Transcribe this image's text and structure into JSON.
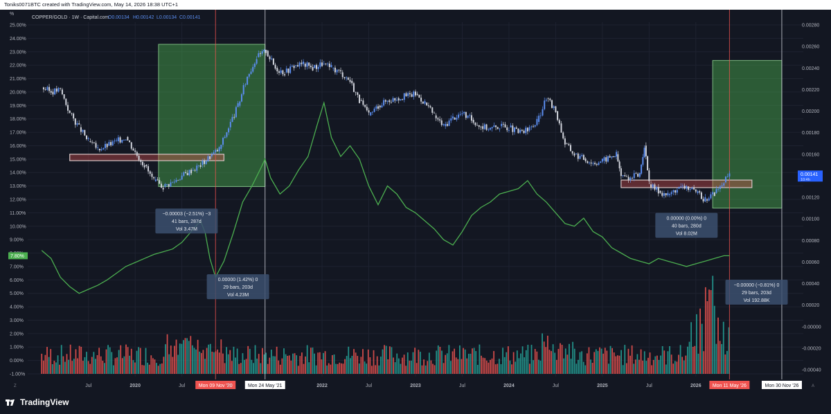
{
  "header": {
    "caption": "Toniks0071BTC created with TradingView.com, May 14, 2026 18:38 UTC+1"
  },
  "legend": {
    "symbol": "COPPER/GOLD · 1W · Capital.com",
    "o": "O0.00134",
    "h": "H0.00142",
    "l": "L0.00134",
    "c": "C0.00141"
  },
  "footer": {
    "brand": "TradingView"
  },
  "chart_data": {
    "type": "line",
    "left_axis": {
      "unit": "%",
      "labels": [
        "25.00%",
        "24.00%",
        "23.00%",
        "22.00%",
        "21.00%",
        "20.00%",
        "19.00%",
        "18.00%",
        "17.00%",
        "16.00%",
        "15.00%",
        "14.00%",
        "13.00%",
        "12.00%",
        "11.00%",
        "10.00%",
        "9.00%",
        "8.00%",
        "7.00%",
        "6.00%",
        "5.00%",
        "4.00%",
        "3.00%",
        "2.00%",
        "1.00%",
        "0.00%",
        "-1.00%"
      ],
      "current_label": "7.80%",
      "current_color": "#4caf50"
    },
    "right_axis": {
      "labels": [
        "0.00280",
        "0.00260",
        "0.00240",
        "0.00220",
        "0.00200",
        "0.00180",
        "0.00160",
        "0.00140",
        "0.00120",
        "0.00100",
        "0.00080",
        "0.00060",
        "0.00040",
        "0.00020",
        "-0.00000",
        "-0.00020",
        "-0.00040"
      ],
      "current_label": "0.00141",
      "current_sub": "10:4h",
      "current_color": "#2962ff"
    },
    "x_axis": {
      "ticks": [
        {
          "label": "Jul",
          "t": 2019.5
        },
        {
          "label": "2020",
          "t": 2020.0
        },
        {
          "label": "Jul",
          "t": 2020.5
        },
        {
          "label": "2022",
          "t": 2022.0
        },
        {
          "label": "Jul",
          "t": 2022.5
        },
        {
          "label": "2023",
          "t": 2023.0
        },
        {
          "label": "Jul",
          "t": 2023.5
        },
        {
          "label": "2024",
          "t": 2024.0
        },
        {
          "label": "Jul",
          "t": 2024.5
        },
        {
          "label": "2025",
          "t": 2025.0
        },
        {
          "label": "Jul",
          "t": 2025.5
        },
        {
          "label": "2026",
          "t": 2026.0
        }
      ],
      "markers": [
        {
          "label": "Mon 09 Nov '20",
          "t": 2020.86,
          "style": "red"
        },
        {
          "label": "'20",
          "t": 2021.05,
          "style": "plain"
        },
        {
          "label": "Mon 24 May '21",
          "t": 2021.39,
          "style": "white"
        },
        {
          "label": "Mon 11 May '26",
          "t": 2026.36,
          "style": "red"
        },
        {
          "label": "Mon 30 Nov '26",
          "t": 2026.92,
          "style": "white"
        }
      ]
    },
    "series": [
      {
        "name": "COPPER/GOLD",
        "kind": "candles",
        "color_up": "#5b8def",
        "color_down": "#d1d4dc",
        "points": [
          [
            2019.0,
            0.00222
          ],
          [
            2019.1,
            0.00218
          ],
          [
            2019.2,
            0.0022
          ],
          [
            2019.3,
            0.00198
          ],
          [
            2019.4,
            0.00185
          ],
          [
            2019.5,
            0.00172
          ],
          [
            2019.6,
            0.00165
          ],
          [
            2019.7,
            0.00168
          ],
          [
            2019.8,
            0.00172
          ],
          [
            2019.9,
            0.00176
          ],
          [
            2020.0,
            0.00162
          ],
          [
            2020.1,
            0.0015
          ],
          [
            2020.2,
            0.00135
          ],
          [
            2020.3,
            0.0013
          ],
          [
            2020.4,
            0.00134
          ],
          [
            2020.5,
            0.0014
          ],
          [
            2020.6,
            0.00145
          ],
          [
            2020.7,
            0.0015
          ],
          [
            2020.8,
            0.00158
          ],
          [
            2020.9,
            0.00165
          ],
          [
            2021.0,
            0.00185
          ],
          [
            2021.1,
            0.00205
          ],
          [
            2021.2,
            0.00232
          ],
          [
            2021.3,
            0.0025
          ],
          [
            2021.4,
            0.00256
          ],
          [
            2021.5,
            0.0024
          ],
          [
            2021.6,
            0.00236
          ],
          [
            2021.7,
            0.00242
          ],
          [
            2021.8,
            0.00244
          ],
          [
            2021.9,
            0.0024
          ],
          [
            2022.0,
            0.00244
          ],
          [
            2022.1,
            0.0024
          ],
          [
            2022.2,
            0.00236
          ],
          [
            2022.3,
            0.00228
          ],
          [
            2022.4,
            0.0021
          ],
          [
            2022.5,
            0.00196
          ],
          [
            2022.6,
            0.00205
          ],
          [
            2022.7,
            0.0021
          ],
          [
            2022.8,
            0.00212
          ],
          [
            2022.9,
            0.00214
          ],
          [
            2023.0,
            0.00216
          ],
          [
            2023.1,
            0.00208
          ],
          [
            2023.2,
            0.00196
          ],
          [
            2023.3,
            0.00186
          ],
          [
            2023.4,
            0.00194
          ],
          [
            2023.5,
            0.00198
          ],
          [
            2023.6,
            0.00192
          ],
          [
            2023.7,
            0.00186
          ],
          [
            2023.8,
            0.00184
          ],
          [
            2023.9,
            0.00186
          ],
          [
            2024.0,
            0.00185
          ],
          [
            2024.1,
            0.0018
          ],
          [
            2024.2,
            0.00182
          ],
          [
            2024.3,
            0.0019
          ],
          [
            2024.4,
            0.00212
          ],
          [
            2024.5,
            0.002
          ],
          [
            2024.6,
            0.0017
          ],
          [
            2024.7,
            0.0016
          ],
          [
            2024.8,
            0.00156
          ],
          [
            2024.9,
            0.00152
          ],
          [
            2025.0,
            0.00154
          ],
          [
            2025.1,
            0.00158
          ],
          [
            2025.15,
            0.0016
          ],
          [
            2025.2,
            0.0014
          ],
          [
            2025.3,
            0.00138
          ],
          [
            2025.4,
            0.00142
          ],
          [
            2025.45,
            0.00168
          ],
          [
            2025.5,
            0.00132
          ],
          [
            2025.6,
            0.00126
          ],
          [
            2025.7,
            0.00122
          ],
          [
            2025.8,
            0.00128
          ],
          [
            2025.9,
            0.0013
          ],
          [
            2026.0,
            0.00124
          ],
          [
            2026.1,
            0.00118
          ],
          [
            2026.2,
            0.00124
          ],
          [
            2026.3,
            0.00134
          ],
          [
            2026.36,
            0.00141
          ]
        ]
      },
      {
        "name": "",
        "kind": "line",
        "color": "#4caf50",
        "axis": "left",
        "points": [
          [
            2019.0,
            8.2
          ],
          [
            2019.1,
            7.6
          ],
          [
            2019.2,
            6.2
          ],
          [
            2019.3,
            5.5
          ],
          [
            2019.4,
            5.0
          ],
          [
            2019.5,
            5.3
          ],
          [
            2019.6,
            5.6
          ],
          [
            2019.7,
            6.0
          ],
          [
            2019.8,
            6.5
          ],
          [
            2019.9,
            7.0
          ],
          [
            2020.0,
            7.3
          ],
          [
            2020.1,
            7.6
          ],
          [
            2020.2,
            7.9
          ],
          [
            2020.3,
            8.1
          ],
          [
            2020.4,
            8.3
          ],
          [
            2020.5,
            8.8
          ],
          [
            2020.6,
            9.6
          ],
          [
            2020.7,
            10.4
          ],
          [
            2020.75,
            9.5
          ],
          [
            2020.8,
            7.6
          ],
          [
            2020.86,
            6.2
          ],
          [
            2020.95,
            7.4
          ],
          [
            2021.05,
            9.5
          ],
          [
            2021.15,
            11.8
          ],
          [
            2021.25,
            13.0
          ],
          [
            2021.35,
            14.4
          ],
          [
            2021.39,
            15.0
          ],
          [
            2021.45,
            13.6
          ],
          [
            2021.55,
            12.4
          ],
          [
            2021.65,
            13.0
          ],
          [
            2021.75,
            14.2
          ],
          [
            2021.85,
            15.2
          ],
          [
            2021.95,
            17.6
          ],
          [
            2022.02,
            19.2
          ],
          [
            2022.1,
            16.6
          ],
          [
            2022.2,
            15.2
          ],
          [
            2022.3,
            16.0
          ],
          [
            2022.4,
            15.0
          ],
          [
            2022.5,
            13.0
          ],
          [
            2022.6,
            11.6
          ],
          [
            2022.7,
            13.0
          ],
          [
            2022.8,
            12.4
          ],
          [
            2022.9,
            11.4
          ],
          [
            2023.0,
            11.0
          ],
          [
            2023.1,
            10.4
          ],
          [
            2023.2,
            9.8
          ],
          [
            2023.3,
            9.0
          ],
          [
            2023.4,
            8.6
          ],
          [
            2023.5,
            9.6
          ],
          [
            2023.6,
            10.8
          ],
          [
            2023.7,
            11.4
          ],
          [
            2023.8,
            11.8
          ],
          [
            2023.9,
            12.4
          ],
          [
            2024.0,
            12.6
          ],
          [
            2024.1,
            12.8
          ],
          [
            2024.2,
            13.4
          ],
          [
            2024.3,
            12.4
          ],
          [
            2024.4,
            11.8
          ],
          [
            2024.5,
            11.0
          ],
          [
            2024.6,
            10.2
          ],
          [
            2024.7,
            10.0
          ],
          [
            2024.8,
            10.6
          ],
          [
            2024.9,
            9.6
          ],
          [
            2025.0,
            9.2
          ],
          [
            2025.1,
            8.4
          ],
          [
            2025.2,
            8.0
          ],
          [
            2025.3,
            7.6
          ],
          [
            2025.4,
            7.4
          ],
          [
            2025.5,
            7.2
          ],
          [
            2025.6,
            7.6
          ],
          [
            2025.7,
            7.4
          ],
          [
            2025.8,
            7.2
          ],
          [
            2025.9,
            7.0
          ],
          [
            2026.0,
            7.2
          ],
          [
            2026.1,
            7.4
          ],
          [
            2026.2,
            7.6
          ],
          [
            2026.3,
            7.8
          ],
          [
            2026.36,
            7.8
          ]
        ]
      }
    ],
    "annotations": [
      {
        "kind": "range-box",
        "color": "green",
        "t1": 2020.25,
        "t2": 2021.39,
        "v1": 0.0013,
        "v2": 0.00262
      },
      {
        "kind": "range-box",
        "color": "green",
        "t1": 2026.18,
        "t2": 2026.92,
        "v1": 0.0011,
        "v2": 0.00247
      },
      {
        "kind": "zone",
        "color": "red",
        "t1": 2019.3,
        "t2": 2020.95,
        "v1": 0.0016,
        "v2": 0.00154
      },
      {
        "kind": "zone",
        "color": "red",
        "t1": 2025.2,
        "t2": 2026.6,
        "v1": 0.00136,
        "v2": 0.00129
      },
      {
        "kind": "measure",
        "label": [
          "−0.00003 (−2.51%) −3",
          "41 bars, 287d",
          "Vol 3.47M"
        ],
        "t": 2020.55,
        "v": 0.00098
      },
      {
        "kind": "measure",
        "label": [
          "0.00000 (1.42%) 0",
          "29 bars, 203d",
          "Vol 4.23M"
        ],
        "t": 2021.1,
        "v": 0.00037
      },
      {
        "kind": "measure",
        "label": [
          "0.00000 (0.00%) 0",
          "40 bars, 280d",
          "Vol 8.02M"
        ],
        "t": 2025.9,
        "v": 0.00094
      },
      {
        "kind": "measure",
        "label": [
          "−0.00000 (−0.81%) 0",
          "29 bars, 203d",
          "Vol 192.88K"
        ],
        "t": 2026.65,
        "v": 0.00032
      }
    ],
    "volume": {
      "axis": "left",
      "base": -1.0,
      "colors": {
        "up": "#26a69a",
        "down": "#ef5350"
      }
    },
    "grid": true
  }
}
